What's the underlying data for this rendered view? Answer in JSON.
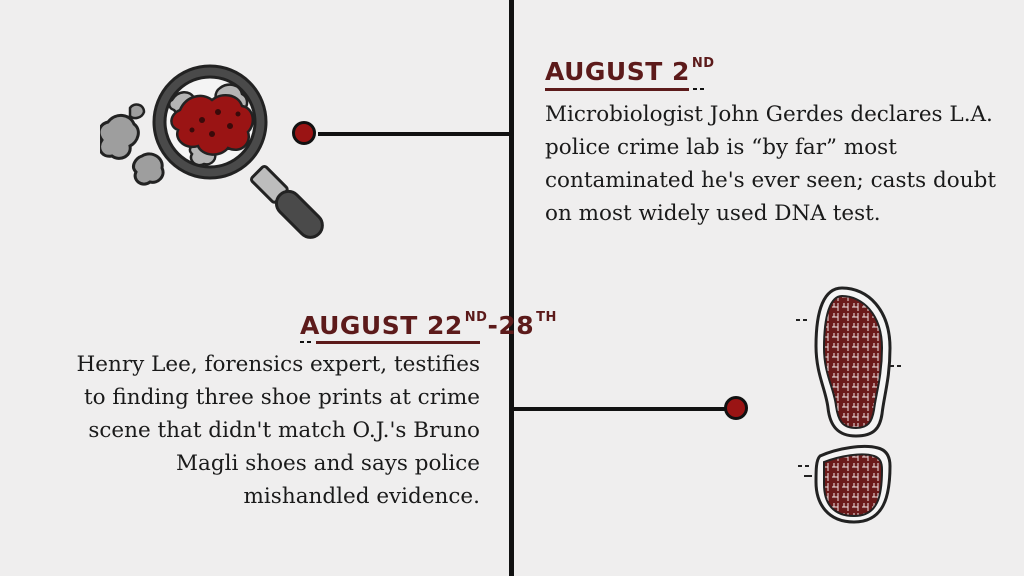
{
  "events": [
    {
      "date_main": "AUGUST 2",
      "date_sup": "ND",
      "lines": [
        "Microbiologist John Gerdes declares L.A.",
        "police crime lab is “by far” most",
        "contaminated he's ever seen; casts doubt",
        "on most widely used DNA test."
      ],
      "icon": "magnifying-glass-icon"
    },
    {
      "date_main": "AUGUST 22",
      "date_sup": "ND",
      "date_sep": "-28",
      "date_sup2": "TH",
      "lines": [
        "Henry Lee, forensics expert, testifies",
        "to finding three shoe prints at crime",
        "scene that didn't match O.J.'s Bruno",
        "Magli shoes and says police",
        "mishandled evidence."
      ],
      "icon": "shoe-print-icon"
    }
  ],
  "colors": {
    "accent": "#9a1414",
    "date": "#5c1a1a",
    "background": "#efeeee"
  }
}
